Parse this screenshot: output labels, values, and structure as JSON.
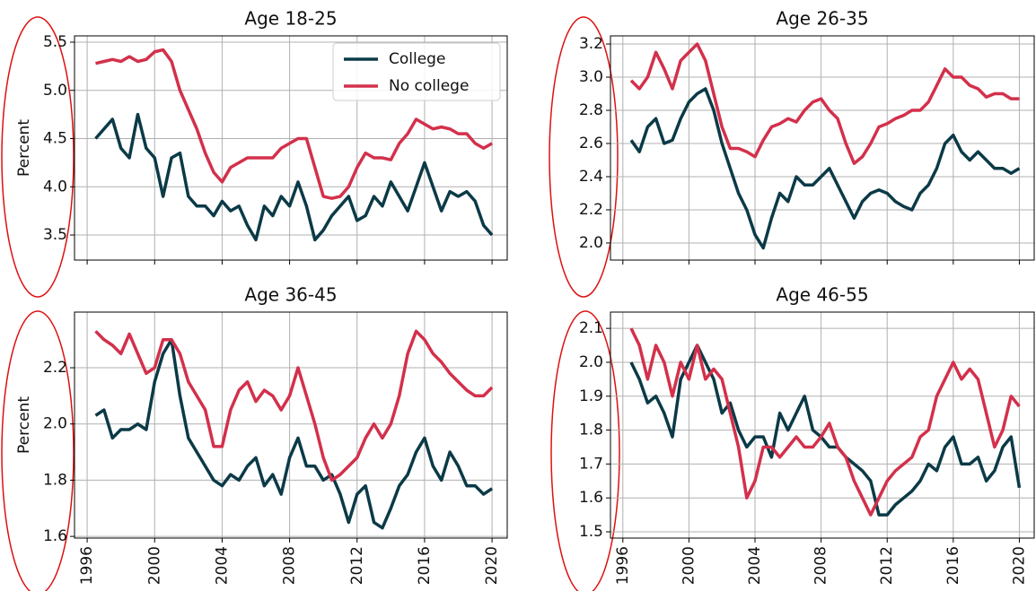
{
  "chart_data": [
    {
      "type": "line",
      "title": "Age 18-25",
      "ylabel": "Percent",
      "legend": "upper right",
      "grid": true,
      "xlim": [
        1995.25,
        2020.9
      ],
      "xticks": [
        1996,
        2000,
        2004,
        2008,
        2012,
        2016,
        2020
      ],
      "ylim": [
        3.24,
        5.565
      ],
      "yticks": [
        3.5,
        {
          "value": 4,
          "label": "4.0"
        },
        4.5,
        {
          "value": 5,
          "label": "5.0"
        },
        5.5
      ],
      "x": [
        1996.5,
        1997,
        1997.5,
        1998,
        1998.5,
        1999,
        1999.5,
        2000,
        2000.5,
        2001,
        2001.5,
        2002,
        2002.5,
        2003,
        2003.5,
        2004,
        2004.5,
        2005,
        2005.5,
        2006,
        2006.5,
        2007,
        2007.5,
        2008,
        2008.5,
        2009,
        2009.5,
        2010,
        2010.5,
        2011,
        2011.5,
        2012,
        2012.5,
        2013,
        2013.5,
        2014,
        2014.5,
        2015,
        2015.5,
        2016,
        2016.5,
        2017,
        2017.5,
        2018,
        2018.5,
        2019,
        2019.5,
        2020
      ],
      "series": [
        {
          "name": "College",
          "color": "#0b3a47",
          "values": [
            4.5,
            4.6,
            4.7,
            4.4,
            4.3,
            4.75,
            4.4,
            4.3,
            3.9,
            4.3,
            4.35,
            3.9,
            3.8,
            3.8,
            3.7,
            3.85,
            3.75,
            3.8,
            3.6,
            3.45,
            3.8,
            3.7,
            3.9,
            3.8,
            4.05,
            3.8,
            3.45,
            3.55,
            3.7,
            3.8,
            3.9,
            3.65,
            3.7,
            3.9,
            3.8,
            4.05,
            3.9,
            3.75,
            4.0,
            4.25,
            4.0,
            3.75,
            3.95,
            3.9,
            3.95,
            3.85,
            3.6,
            3.5
          ]
        },
        {
          "name": "No college",
          "color": "#d3304b",
          "values": [
            5.28,
            5.3,
            5.32,
            5.3,
            5.35,
            5.3,
            5.32,
            5.4,
            5.42,
            5.3,
            5.0,
            4.8,
            4.6,
            4.35,
            4.15,
            4.05,
            4.2,
            4.25,
            4.3,
            4.3,
            4.3,
            4.3,
            4.4,
            4.45,
            4.5,
            4.5,
            4.2,
            3.9,
            3.88,
            3.9,
            4.0,
            4.2,
            4.35,
            4.3,
            4.3,
            4.28,
            4.45,
            4.55,
            4.7,
            4.65,
            4.6,
            4.62,
            4.6,
            4.55,
            4.55,
            4.45,
            4.4,
            4.45
          ]
        }
      ]
    },
    {
      "type": "line",
      "title": "Age 26-35",
      "grid": true,
      "xlim": [
        1995.25,
        2020.9
      ],
      "xticks": [
        1996,
        2000,
        2004,
        2008,
        2012,
        2016,
        2020
      ],
      "ylim": [
        1.897,
        3.249
      ],
      "yticks": [
        {
          "value": 2,
          "label": "2.0"
        },
        2.2,
        2.4,
        2.6,
        2.8,
        {
          "value": 3,
          "label": "3.0"
        },
        3.2
      ],
      "x": [
        1996.5,
        1997,
        1997.5,
        1998,
        1998.5,
        1999,
        1999.5,
        2000,
        2000.5,
        2001,
        2001.5,
        2002,
        2002.5,
        2003,
        2003.5,
        2004,
        2004.5,
        2005,
        2005.5,
        2006,
        2006.5,
        2007,
        2007.5,
        2008,
        2008.5,
        2009,
        2009.5,
        2010,
        2010.5,
        2011,
        2011.5,
        2012,
        2012.5,
        2013,
        2013.5,
        2014,
        2014.5,
        2015,
        2015.5,
        2016,
        2016.5,
        2017,
        2017.5,
        2018,
        2018.5,
        2019,
        2019.5,
        2020
      ],
      "series": [
        {
          "color": "#0b3a47",
          "values": [
            2.62,
            2.55,
            2.7,
            2.75,
            2.6,
            2.62,
            2.75,
            2.85,
            2.9,
            2.93,
            2.8,
            2.6,
            2.45,
            2.3,
            2.2,
            2.05,
            1.97,
            2.15,
            2.3,
            2.25,
            2.4,
            2.35,
            2.35,
            2.4,
            2.45,
            2.35,
            2.25,
            2.15,
            2.25,
            2.3,
            2.32,
            2.3,
            2.25,
            2.22,
            2.2,
            2.3,
            2.35,
            2.45,
            2.6,
            2.65,
            2.55,
            2.5,
            2.55,
            2.5,
            2.45,
            2.45,
            2.42,
            2.45
          ]
        },
        {
          "color": "#d3304b",
          "values": [
            2.98,
            2.93,
            3.0,
            3.15,
            3.05,
            2.93,
            3.1,
            3.15,
            3.2,
            3.1,
            2.9,
            2.7,
            2.57,
            2.57,
            2.55,
            2.52,
            2.62,
            2.7,
            2.72,
            2.75,
            2.73,
            2.8,
            2.85,
            2.87,
            2.8,
            2.75,
            2.6,
            2.48,
            2.52,
            2.6,
            2.7,
            2.72,
            2.75,
            2.77,
            2.8,
            2.8,
            2.85,
            2.95,
            3.05,
            3.0,
            3.0,
            2.95,
            2.93,
            2.88,
            2.9,
            2.9,
            2.87,
            2.87
          ]
        }
      ]
    },
    {
      "type": "line",
      "title": "Age 36-45",
      "ylabel": "Percent",
      "grid": true,
      "xlim": [
        1995.25,
        2020.9
      ],
      "xticks": [
        1996,
        2000,
        2004,
        2008,
        2012,
        2016,
        2020
      ],
      "ylim": [
        1.594,
        2.398
      ],
      "yticks": [
        1.6,
        1.8,
        {
          "value": 2,
          "label": "2.0"
        },
        2.2
      ],
      "x": [
        1996.5,
        1997,
        1997.5,
        1998,
        1998.5,
        1999,
        1999.5,
        2000,
        2000.5,
        2001,
        2001.5,
        2002,
        2002.5,
        2003,
        2003.5,
        2004,
        2004.5,
        2005,
        2005.5,
        2006,
        2006.5,
        2007,
        2007.5,
        2008,
        2008.5,
        2009,
        2009.5,
        2010,
        2010.5,
        2011,
        2011.5,
        2012,
        2012.5,
        2013,
        2013.5,
        2014,
        2014.5,
        2015,
        2015.5,
        2016,
        2016.5,
        2017,
        2017.5,
        2018,
        2018.5,
        2019,
        2019.5,
        2020
      ],
      "series": [
        {
          "color": "#0b3a47",
          "values": [
            2.03,
            2.05,
            1.95,
            1.98,
            1.98,
            2.0,
            1.98,
            2.15,
            2.25,
            2.3,
            2.1,
            1.95,
            1.9,
            1.85,
            1.8,
            1.78,
            1.82,
            1.8,
            1.85,
            1.88,
            1.78,
            1.82,
            1.75,
            1.88,
            1.95,
            1.85,
            1.85,
            1.8,
            1.82,
            1.75,
            1.65,
            1.75,
            1.78,
            1.65,
            1.63,
            1.7,
            1.78,
            1.82,
            1.9,
            1.95,
            1.85,
            1.8,
            1.9,
            1.85,
            1.78,
            1.78,
            1.75,
            1.77
          ]
        },
        {
          "color": "#d3304b",
          "values": [
            2.33,
            2.3,
            2.28,
            2.25,
            2.32,
            2.25,
            2.18,
            2.2,
            2.3,
            2.3,
            2.25,
            2.15,
            2.1,
            2.05,
            1.92,
            1.92,
            2.05,
            2.12,
            2.15,
            2.08,
            2.12,
            2.1,
            2.05,
            2.1,
            2.2,
            2.1,
            2.0,
            1.88,
            1.8,
            1.82,
            1.85,
            1.88,
            1.95,
            2.0,
            1.95,
            2.0,
            2.1,
            2.25,
            2.33,
            2.3,
            2.25,
            2.22,
            2.18,
            2.15,
            2.12,
            2.1,
            2.1,
            2.13
          ]
        }
      ]
    },
    {
      "type": "line",
      "title": "Age 46-55",
      "grid": true,
      "xlim": [
        1995.25,
        2020.9
      ],
      "xticks": [
        1996,
        2000,
        2004,
        2008,
        2012,
        2016,
        2020
      ],
      "ylim": [
        1.4815,
        2.148
      ],
      "yticks": [
        1.5,
        1.6,
        1.7,
        1.8,
        1.9,
        {
          "value": 2,
          "label": "2.0"
        },
        2.1
      ],
      "x": [
        1996.5,
        1997,
        1997.5,
        1998,
        1998.5,
        1999,
        1999.5,
        2000,
        2000.5,
        2001,
        2001.5,
        2002,
        2002.5,
        2003,
        2003.5,
        2004,
        2004.5,
        2005,
        2005.5,
        2006,
        2006.5,
        2007,
        2007.5,
        2008,
        2008.5,
        2009,
        2009.5,
        2010,
        2010.5,
        2011,
        2011.5,
        2012,
        2012.5,
        2013,
        2013.5,
        2014,
        2014.5,
        2015,
        2015.5,
        2016,
        2016.5,
        2017,
        2017.5,
        2018,
        2018.5,
        2019,
        2019.5,
        2020
      ],
      "series": [
        {
          "color": "#0b3a47",
          "values": [
            2.0,
            1.95,
            1.88,
            1.9,
            1.85,
            1.78,
            1.95,
            2.0,
            2.05,
            2.0,
            1.95,
            1.85,
            1.88,
            1.8,
            1.75,
            1.78,
            1.78,
            1.72,
            1.85,
            1.8,
            1.85,
            1.9,
            1.8,
            1.78,
            1.75,
            1.75,
            1.72,
            1.7,
            1.68,
            1.65,
            1.55,
            1.55,
            1.58,
            1.6,
            1.62,
            1.65,
            1.7,
            1.68,
            1.75,
            1.78,
            1.7,
            1.7,
            1.72,
            1.65,
            1.68,
            1.75,
            1.78,
            1.63
          ]
        },
        {
          "color": "#d3304b",
          "values": [
            2.1,
            2.05,
            1.95,
            2.05,
            2.0,
            1.9,
            2.0,
            1.95,
            2.05,
            1.95,
            1.98,
            1.95,
            1.85,
            1.75,
            1.6,
            1.65,
            1.75,
            1.75,
            1.72,
            1.75,
            1.78,
            1.75,
            1.75,
            1.78,
            1.82,
            1.75,
            1.72,
            1.65,
            1.6,
            1.55,
            1.6,
            1.65,
            1.68,
            1.7,
            1.72,
            1.78,
            1.8,
            1.9,
            1.95,
            2.0,
            1.95,
            1.98,
            1.95,
            1.85,
            1.75,
            1.8,
            1.9,
            1.87
          ]
        }
      ]
    }
  ]
}
